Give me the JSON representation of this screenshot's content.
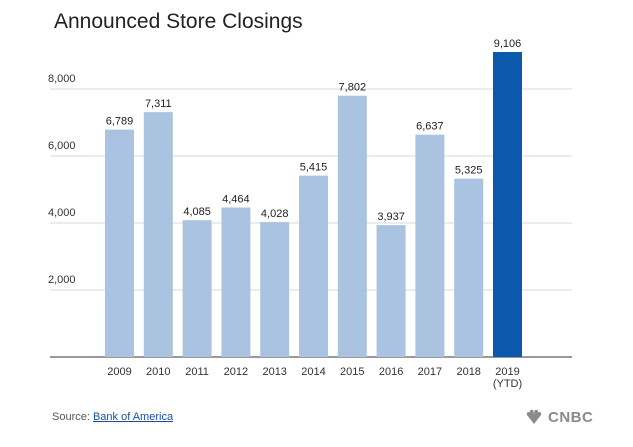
{
  "chart_data": {
    "type": "bar",
    "title": "Announced Store Closings",
    "categories": [
      "2009",
      "2010",
      "2011",
      "2012",
      "2013",
      "2014",
      "2015",
      "2016",
      "2017",
      "2018",
      "2019\n(YTD)"
    ],
    "values": [
      6789,
      7311,
      4085,
      4464,
      4028,
      5415,
      7802,
      3937,
      6637,
      5325,
      9106
    ],
    "value_labels": [
      "6,789",
      "7,311",
      "4,085",
      "4,464",
      "4,028",
      "5,415",
      "7,802",
      "3,937",
      "6,637",
      "5,325",
      "9,106"
    ],
    "ylim": [
      0,
      9106
    ],
    "yticks": [
      2000,
      4000,
      6000,
      8000
    ],
    "ytick_labels": [
      "2,000",
      "4,000",
      "6,000",
      "8,000"
    ],
    "xlabel": "",
    "ylabel": "",
    "grid": true,
    "colors": {
      "bar": "#a9c3e1",
      "highlight_bar": "#0b58ac",
      "grid": "#d9d9d9",
      "axis": "#333333",
      "title_highlight": "#ffff3a"
    },
    "highlight_index": 10
  },
  "footer": {
    "source_prefix": "Source: ",
    "source_name": "Bank of America",
    "brand": "CNBC",
    "brand_icon": "peacock-icon"
  }
}
